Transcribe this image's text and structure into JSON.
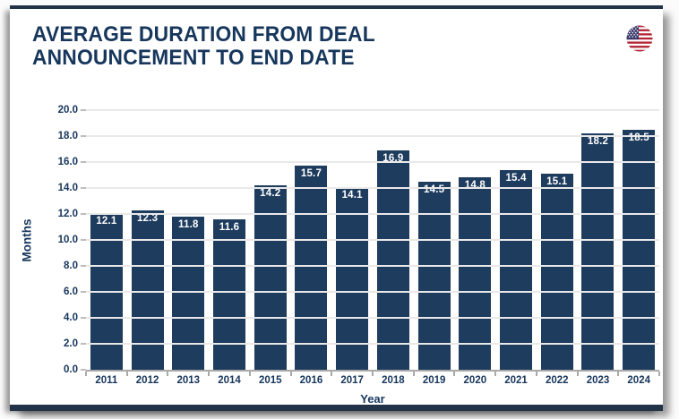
{
  "header": {
    "title_lines": [
      "AVERAGE DURATION FROM DEAL",
      "ANNOUNCEMENT TO END DATE"
    ],
    "flag_icon": "us-flag-icon"
  },
  "chart_data": {
    "type": "bar",
    "title": "Average Duration from Deal Announcement to End Date",
    "categories": [
      "2011",
      "2012",
      "2013",
      "2014",
      "2015",
      "2016",
      "2017",
      "2018",
      "2019",
      "2020",
      "2021",
      "2022",
      "2023",
      "2024"
    ],
    "values": [
      12.1,
      12.3,
      11.8,
      11.6,
      14.2,
      15.7,
      14.1,
      16.9,
      14.5,
      14.8,
      15.4,
      15.1,
      18.2,
      18.5
    ],
    "value_labels": [
      "12.1",
      "12.3",
      "11.8",
      "11.6",
      "14.2",
      "15.7",
      "14.1",
      "16.9",
      "14.5",
      "14.8",
      "15.4",
      "15.1",
      "18.2",
      "18.5"
    ],
    "xlabel": "Year",
    "ylabel": "Months",
    "ylim": [
      0,
      20
    ],
    "ytick_step": 2,
    "ytick_labels": [
      "0.0",
      "2.0",
      "4.0",
      "6.0",
      "8.0",
      "10.0",
      "12.0",
      "14.0",
      "16.0",
      "18.0",
      "20.0"
    ],
    "grid": true,
    "legend": "none",
    "bar_color": "#1e3c5e",
    "value_label_color": "#ffffff",
    "axis_text_color": "#16365c",
    "gridline_color": "#e9e9e9",
    "axis_line_color": "#a9a9a9",
    "frame_border_color": "#223349"
  }
}
